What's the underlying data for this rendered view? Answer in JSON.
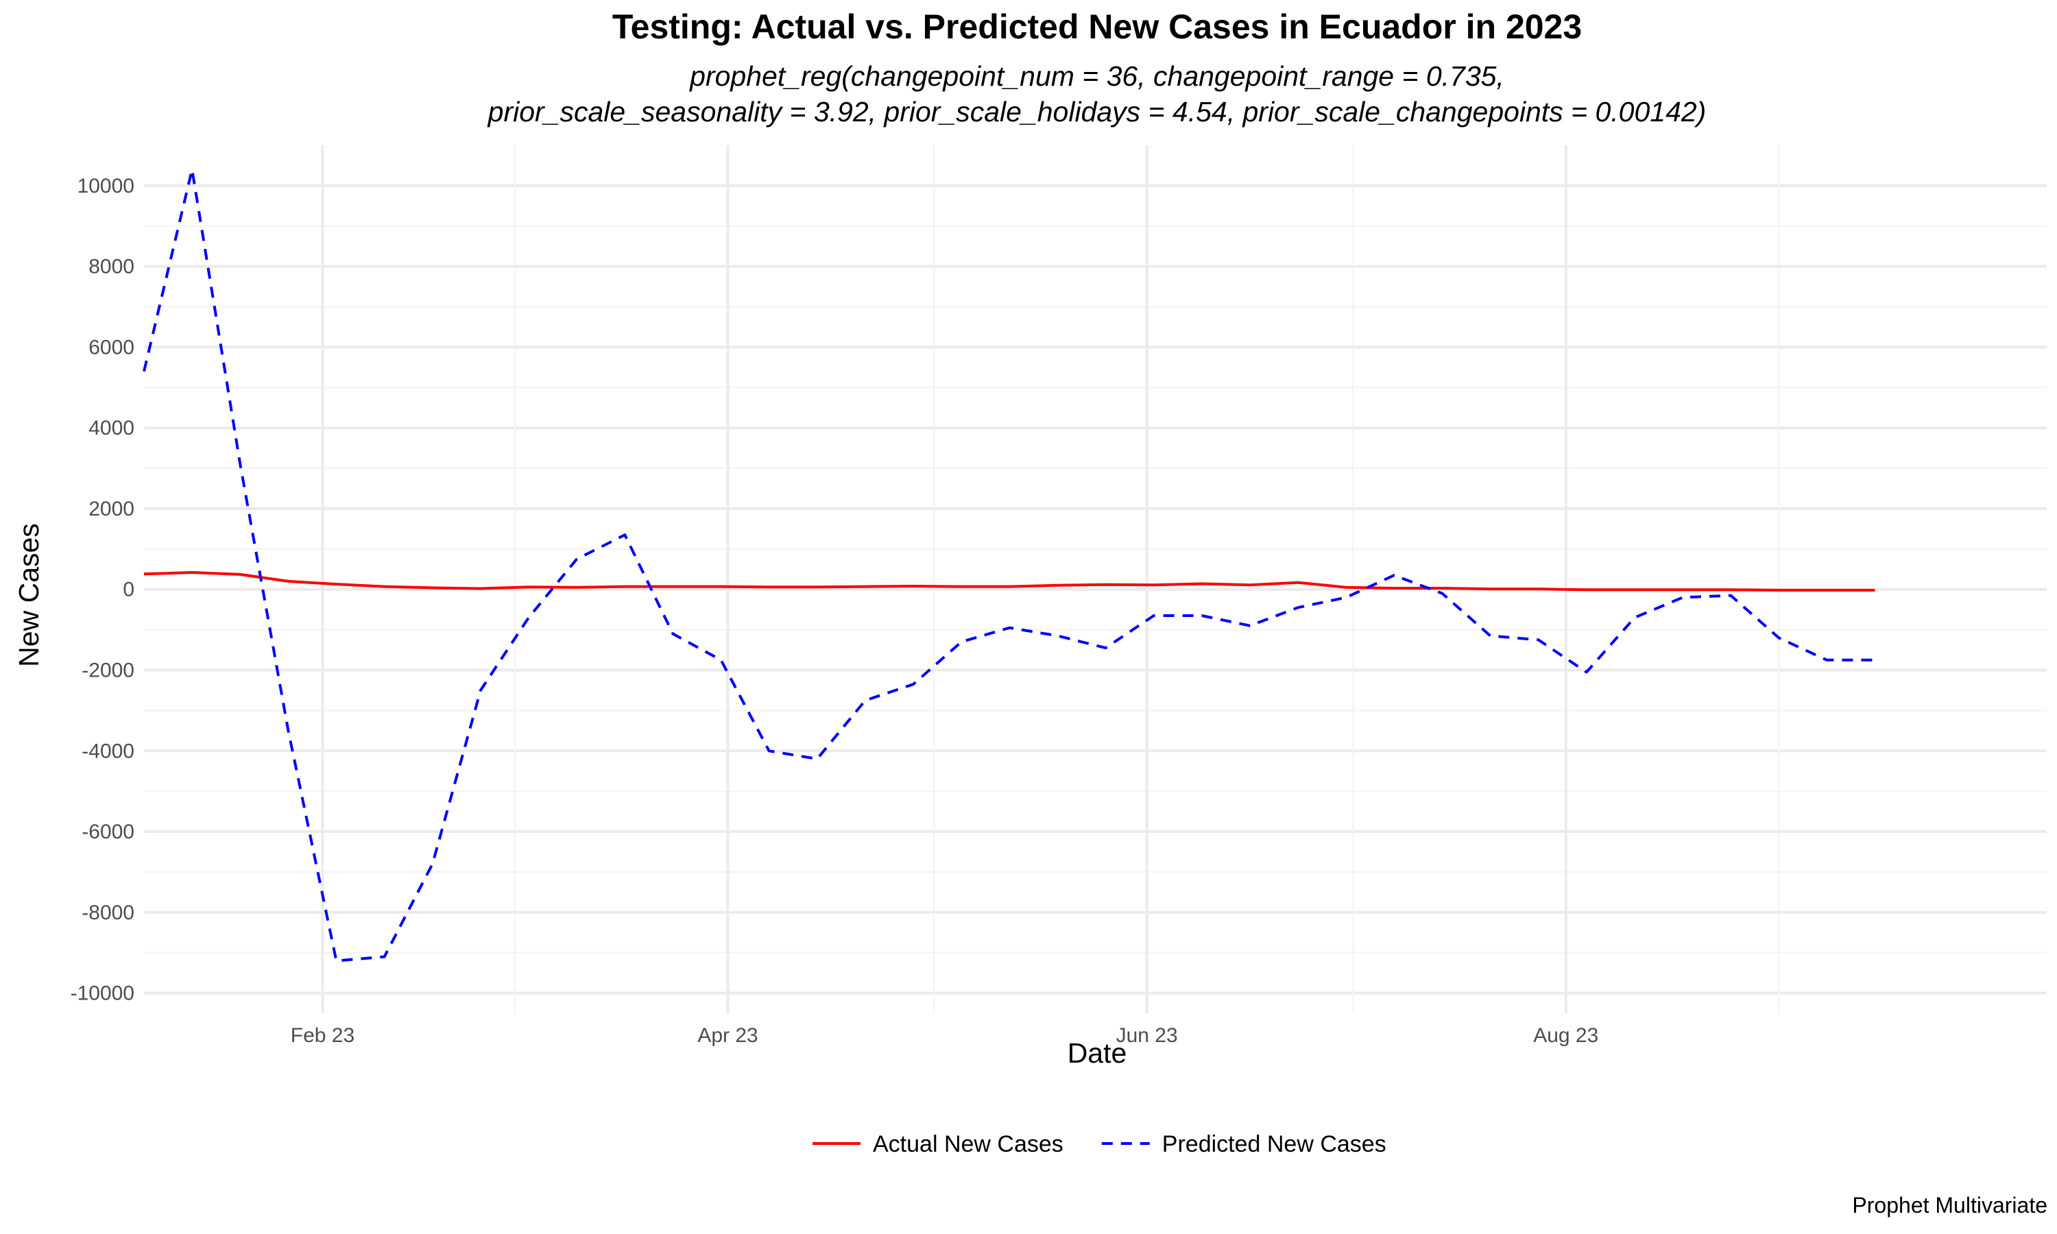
{
  "chart_data": {
    "type": "line",
    "title": "Testing: Actual vs. Predicted New Cases in Ecuador in 2023",
    "subtitle_line1": "prophet_reg(changepoint_num = 36, changepoint_range = 0.735,",
    "subtitle_line2": "prior_scale_seasonality = 3.92, prior_scale_holidays = 4.54, prior_scale_changepoints = 0.00142)",
    "xlabel": "Date",
    "ylabel": "New Cases",
    "caption": "Prophet Multivariate",
    "x_ticks": [
      {
        "date": "2023-02-01",
        "label": "Feb 23"
      },
      {
        "date": "2023-04-01",
        "label": "Apr 23"
      },
      {
        "date": "2023-06-01",
        "label": "Jun 23"
      },
      {
        "date": "2023-08-01",
        "label": "Aug 23"
      }
    ],
    "xlim": [
      "2023-01-06",
      "2023-10-10"
    ],
    "ylim": [
      -10500,
      11000
    ],
    "y_ticks": [
      -10000,
      -8000,
      -6000,
      -4000,
      -2000,
      0,
      2000,
      4000,
      6000,
      8000,
      10000
    ],
    "x": [
      "2023-01-06",
      "2023-01-13",
      "2023-01-20",
      "2023-01-27",
      "2023-02-03",
      "2023-02-10",
      "2023-02-17",
      "2023-02-24",
      "2023-03-03",
      "2023-03-10",
      "2023-03-17",
      "2023-03-24",
      "2023-03-31",
      "2023-04-07",
      "2023-04-14",
      "2023-04-21",
      "2023-04-28",
      "2023-05-05",
      "2023-05-12",
      "2023-05-19",
      "2023-05-26",
      "2023-06-02",
      "2023-06-09",
      "2023-06-16",
      "2023-06-23",
      "2023-06-30",
      "2023-07-07",
      "2023-07-14",
      "2023-07-21",
      "2023-07-28",
      "2023-08-04",
      "2023-08-11",
      "2023-08-18",
      "2023-08-25",
      "2023-09-01",
      "2023-09-08",
      "2023-09-15"
    ],
    "series": [
      {
        "name": "Actual New Cases",
        "color": "#ff0000",
        "dash": "solid",
        "values": [
          380,
          420,
          370,
          200,
          130,
          70,
          40,
          20,
          60,
          50,
          70,
          70,
          70,
          60,
          60,
          70,
          80,
          70,
          70,
          100,
          120,
          110,
          140,
          110,
          170,
          50,
          30,
          30,
          10,
          10,
          -10,
          -10,
          -10,
          -10,
          -20,
          -20,
          -20
        ]
      },
      {
        "name": "Predicted New Cases",
        "color": "#0000ff",
        "dash": "dashed",
        "values": [
          5400,
          10400,
          3100,
          -3500,
          -9200,
          -9100,
          -6800,
          -2500,
          -700,
          750,
          1350,
          -1100,
          -1750,
          -4000,
          -4200,
          -2750,
          -2350,
          -1300,
          -950,
          -1150,
          -1450,
          -650,
          -650,
          -900,
          -450,
          -200,
          350,
          -100,
          -1150,
          -1250,
          -2050,
          -700,
          -200,
          -150,
          -1200,
          -1750,
          -1750
        ]
      }
    ],
    "legend_position": "bottom",
    "grid": true
  }
}
